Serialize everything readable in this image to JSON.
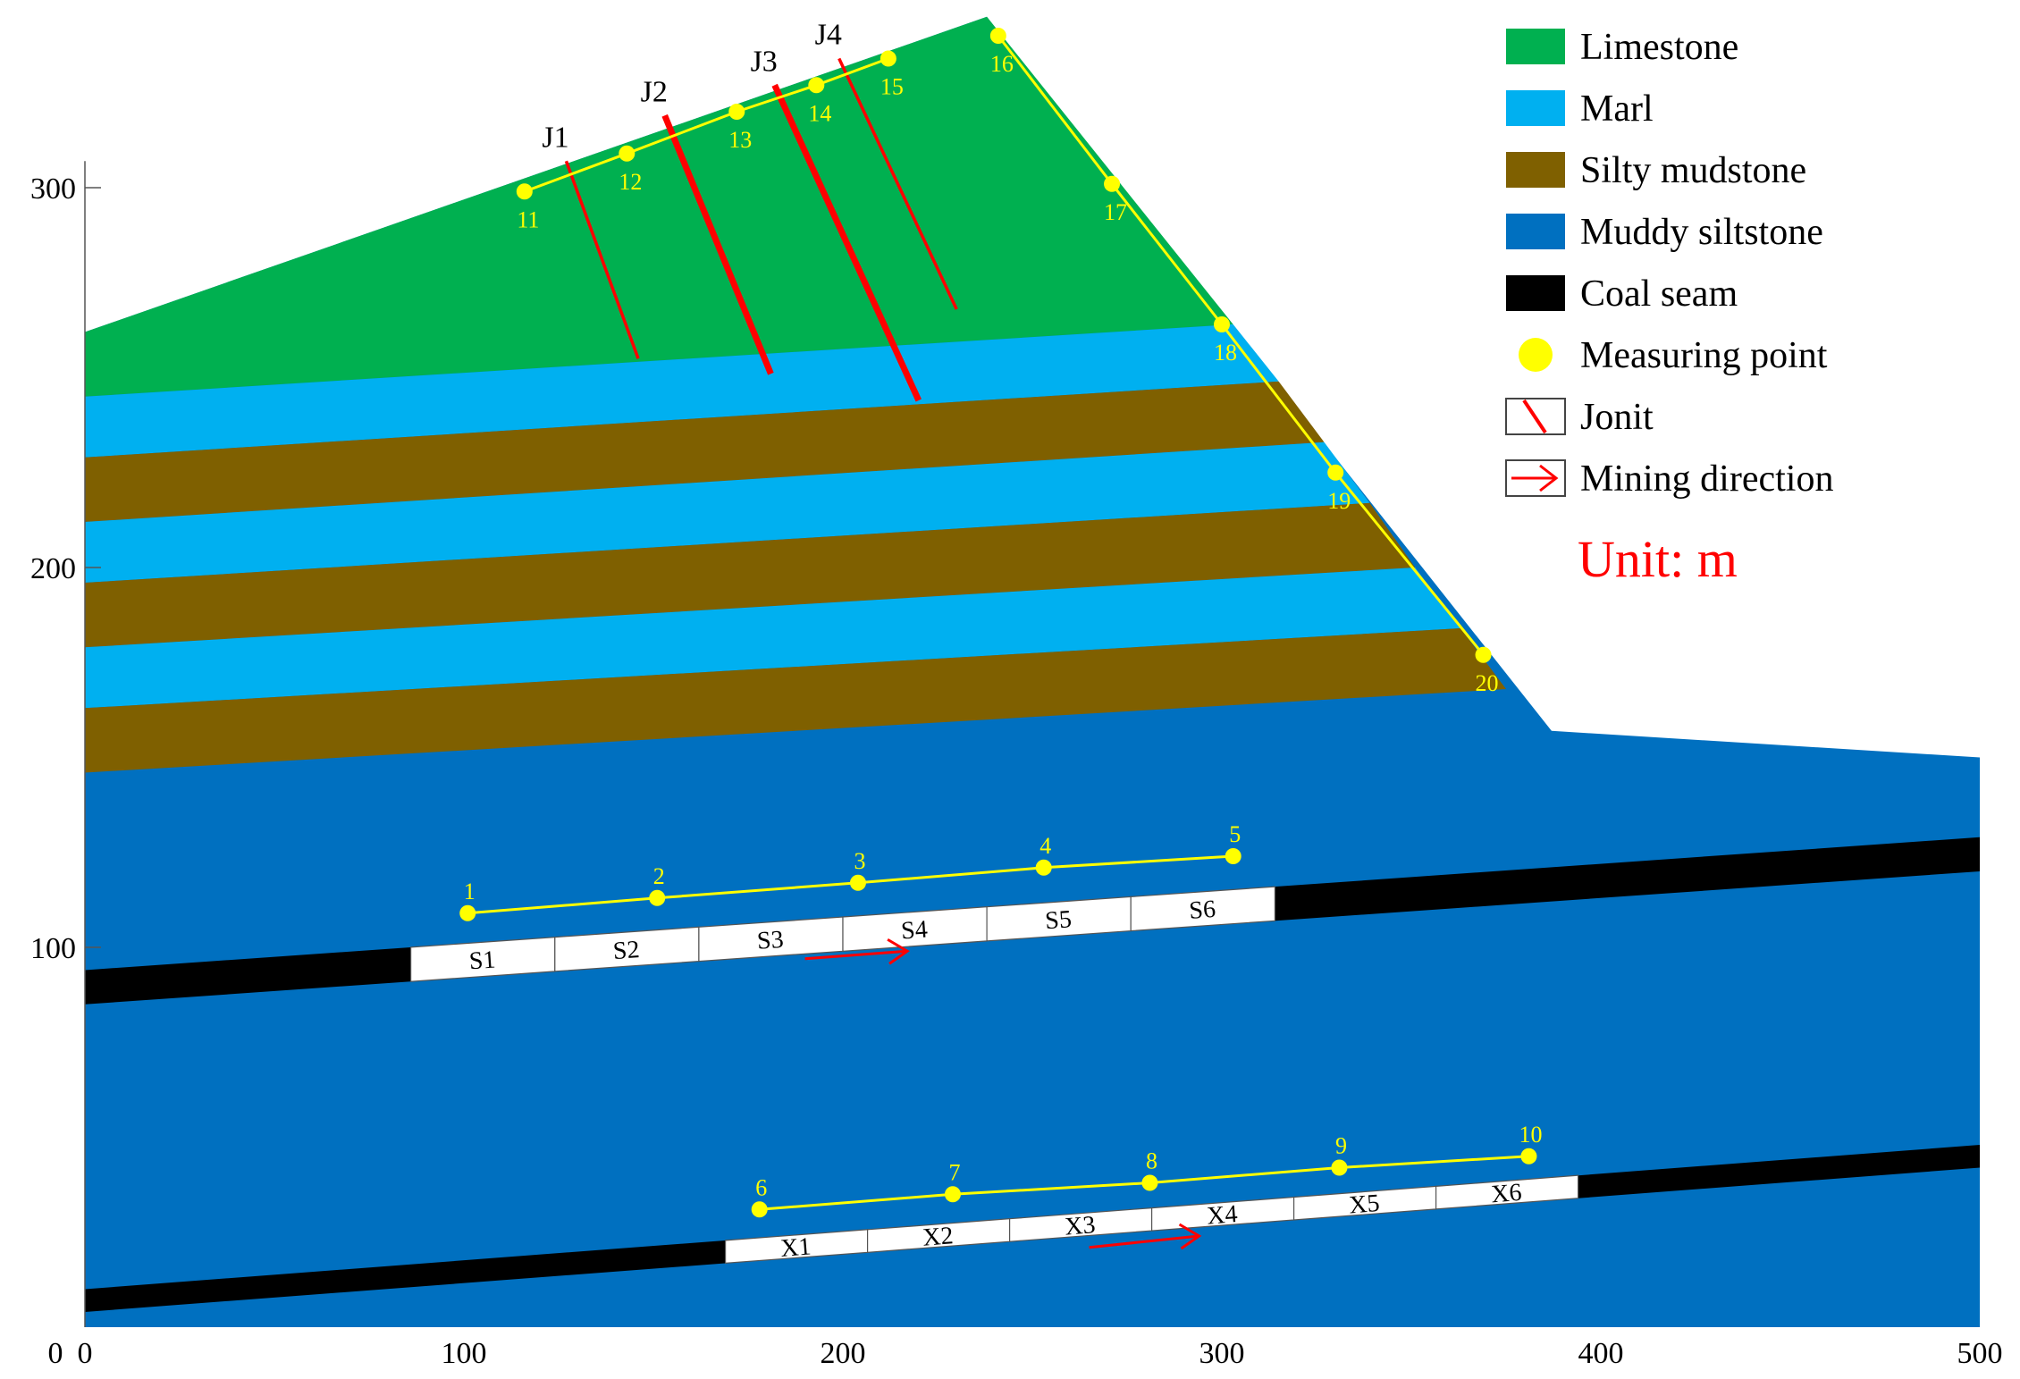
{
  "chart_data": {
    "type": "diagram",
    "units": "Unit: m",
    "x_ticks": [
      "0",
      "100",
      "200",
      "300",
      "400",
      "500"
    ],
    "y_ticks": [
      "100",
      "200",
      "300"
    ],
    "xlim": [
      0,
      500
    ],
    "ylim": [
      0,
      340
    ],
    "colors": {
      "limestone": "#00b050",
      "marl": "#00b0f0",
      "silty_mudstone": "#7f6000",
      "muddy_siltstone": "#0070c0",
      "coal_seam": "#000000",
      "measuring_point": "#ffff00",
      "joint": "#ff0000",
      "arrow": "#ff0000",
      "units": "#ff0000"
    },
    "legend": [
      {
        "key": "limestone",
        "label": "Limestone",
        "icon": "swatch-icon"
      },
      {
        "key": "marl",
        "label": "Marl",
        "icon": "swatch-icon"
      },
      {
        "key": "silty_mudstone",
        "label": "Silty mudstone",
        "icon": "swatch-icon"
      },
      {
        "key": "muddy_siltstone",
        "label": "Muddy siltstone",
        "icon": "swatch-icon"
      },
      {
        "key": "coal_seam",
        "label": "Coal seam",
        "icon": "swatch-icon"
      },
      {
        "key": "measuring_point",
        "label": "Measuring point",
        "icon": "dot-icon"
      },
      {
        "key": "joint",
        "label": "Jonit",
        "icon": "joint-icon"
      },
      {
        "key": "mining_direction",
        "label": "Mining direction",
        "icon": "arrow-icon"
      }
    ],
    "profile": [
      [
        0,
        262
      ],
      [
        238,
        345
      ],
      [
        387,
        157
      ],
      [
        500,
        150
      ],
      [
        500,
        0
      ],
      [
        0,
        0
      ]
    ],
    "boundaries": [
      {
        "between": "limestone-marl",
        "left_y": 245,
        "right_x": 303,
        "right_y": 264
      },
      {
        "between": "marl-mudstone",
        "left_y": 229,
        "right_x": 315,
        "right_y": 249
      },
      {
        "between": "mudstone-marl",
        "left_y": 212,
        "right_x": 327,
        "right_y": 233
      },
      {
        "between": "marl-mudstone",
        "left_y": 196,
        "right_x": 339,
        "right_y": 217
      },
      {
        "between": "mudstone-marl",
        "left_y": 179,
        "right_x": 351,
        "right_y": 200
      },
      {
        "between": "marl-mudstone",
        "left_y": 163,
        "right_x": 363,
        "right_y": 184
      },
      {
        "between": "mudstone-siltstone",
        "left_y": 146,
        "right_x": 375,
        "right_y": 168
      }
    ],
    "layers": [
      "limestone",
      "marl",
      "silty_mudstone",
      "marl",
      "silty_mudstone",
      "marl",
      "silty_mudstone",
      "muddy_siltstone"
    ],
    "coal_seams": [
      {
        "name": "upper",
        "left": [
          0,
          94
        ],
        "right": [
          500,
          129
        ],
        "thickness": 9
      },
      {
        "name": "lower",
        "left": [
          0,
          10
        ],
        "right": [
          500,
          48
        ],
        "thickness": 6
      }
    ],
    "upper_panels": {
      "x_start": 86,
      "x_end": 314,
      "labels": [
        "S1",
        "S2",
        "S3",
        "S4",
        "S5",
        "S6"
      ]
    },
    "lower_panels": {
      "x_start": 169,
      "x_end": 394,
      "labels": [
        "X1",
        "X2",
        "X3",
        "X4",
        "X5",
        "X6"
      ]
    },
    "joints": [
      {
        "label": "J1",
        "top": [
          127,
          307
        ],
        "bottom": [
          146,
          255
        ],
        "bold": false
      },
      {
        "label": "J2",
        "top": [
          153,
          319
        ],
        "bottom": [
          181,
          251
        ],
        "bold": true
      },
      {
        "label": "J3",
        "top": [
          182,
          327
        ],
        "bottom": [
          220,
          244
        ],
        "bold": true
      },
      {
        "label": "J4",
        "top": [
          199,
          334
        ],
        "bottom": [
          230,
          268
        ],
        "bold": false
      }
    ],
    "measuring_lines": [
      [
        1,
        2,
        3,
        4,
        5
      ],
      [
        6,
        7,
        8,
        9,
        10
      ],
      [
        11,
        12,
        13,
        14,
        15
      ],
      [
        16,
        17,
        18,
        19,
        20
      ]
    ],
    "measuring_points": [
      {
        "id": "1",
        "x": 101,
        "y": 109
      },
      {
        "id": "2",
        "x": 151,
        "y": 113
      },
      {
        "id": "3",
        "x": 204,
        "y": 117
      },
      {
        "id": "4",
        "x": 253,
        "y": 121
      },
      {
        "id": "5",
        "x": 303,
        "y": 124
      },
      {
        "id": "6",
        "x": 178,
        "y": 31
      },
      {
        "id": "7",
        "x": 229,
        "y": 35
      },
      {
        "id": "8",
        "x": 281,
        "y": 38
      },
      {
        "id": "9",
        "x": 331,
        "y": 42
      },
      {
        "id": "10",
        "x": 381,
        "y": 45
      },
      {
        "id": "11",
        "x": 116,
        "y": 299
      },
      {
        "id": "12",
        "x": 143,
        "y": 309
      },
      {
        "id": "13",
        "x": 172,
        "y": 320
      },
      {
        "id": "14",
        "x": 193,
        "y": 327
      },
      {
        "id": "15",
        "x": 212,
        "y": 334
      },
      {
        "id": "16",
        "x": 241,
        "y": 340
      },
      {
        "id": "17",
        "x": 271,
        "y": 301
      },
      {
        "id": "18",
        "x": 300,
        "y": 264
      },
      {
        "id": "19",
        "x": 330,
        "y": 225
      },
      {
        "id": "20",
        "x": 369,
        "y": 177
      }
    ],
    "mining_arrows": [
      {
        "from": [
          190,
          97
        ],
        "to": [
          217,
          99
        ]
      },
      {
        "from": [
          265,
          21
        ],
        "to": [
          294,
          24
        ]
      }
    ]
  }
}
